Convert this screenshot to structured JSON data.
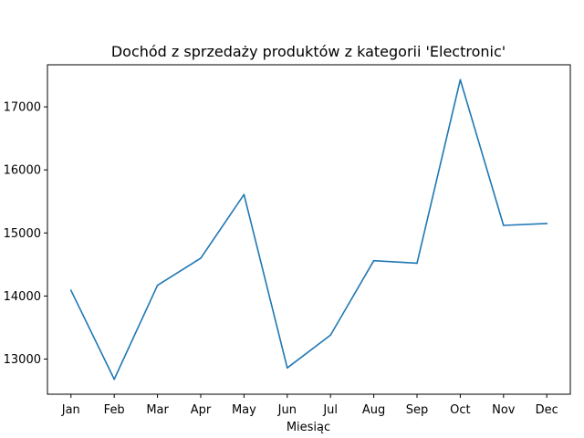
{
  "chart_data": {
    "type": "line",
    "title": "Dochód z sprzedaży produktów z kategorii 'Electronic'",
    "xlabel": "Miesiąc",
    "ylabel": "",
    "categories": [
      "Jan",
      "Feb",
      "Mar",
      "Apr",
      "May",
      "Jun",
      "Jul",
      "Aug",
      "Sep",
      "Oct",
      "Nov",
      "Dec"
    ],
    "series": [
      {
        "values": [
          14090,
          12680,
          14170,
          14600,
          15610,
          12860,
          13380,
          14560,
          14520,
          17430,
          15120,
          15150
        ]
      }
    ],
    "yticks": [
      13000,
      14000,
      15000,
      16000,
      17000
    ],
    "ylim": [
      12443,
      17667
    ],
    "grid": false,
    "legend": "none",
    "colors": {
      "line": "#1f77b4"
    }
  }
}
